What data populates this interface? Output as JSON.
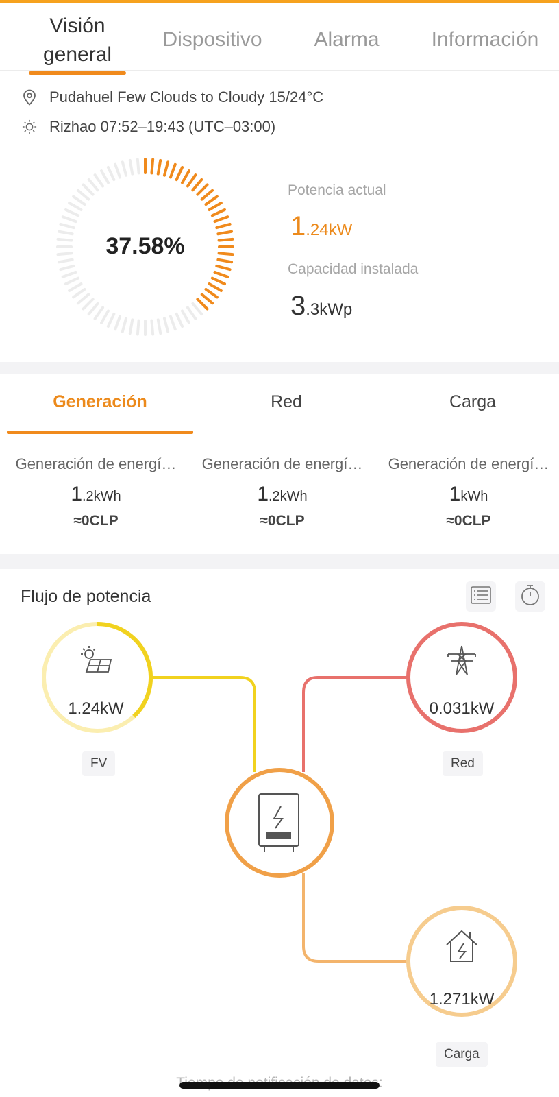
{
  "tabs": [
    {
      "label": "Visión general",
      "active": true
    },
    {
      "label": "Dispositivo",
      "active": false
    },
    {
      "label": "Alarma",
      "active": false
    },
    {
      "label": "Información",
      "active": false
    }
  ],
  "weather": {
    "location_text": "Pudahuel Few Clouds to Cloudy 15/24°C",
    "sun_text": "Rizhao 07:52–19:43 (UTC–03:00)"
  },
  "gauge": {
    "percent_label": "37.58%",
    "fraction": 0.3758,
    "color": "#f08a1c",
    "track_color": "#ececec"
  },
  "current_power": {
    "label": "Potencia actual",
    "value_int": "1",
    "value_rest": ".24kW"
  },
  "installed_capacity": {
    "label": "Capacidad instalada",
    "value_int": "3",
    "value_rest": ".3kWp"
  },
  "sub_tabs": [
    {
      "label": "Generación",
      "active": true
    },
    {
      "label": "Red",
      "active": false
    },
    {
      "label": "Carga",
      "active": false
    }
  ],
  "generation": [
    {
      "label": "Generación de energí…",
      "value_int": "1",
      "value_rest": ".2kWh",
      "money": "≈0CLP"
    },
    {
      "label": "Generación de energí…",
      "value_int": "1",
      "value_rest": ".2kWh",
      "money": "≈0CLP"
    },
    {
      "label": "Generación de energí…",
      "value_int": "1",
      "value_rest": "kWh",
      "money": "≈0CLP"
    }
  ],
  "power_flow": {
    "title": "Flujo de potencia",
    "fv": {
      "value": "1.24kW",
      "tag": "FV",
      "icon": "solar-panel-icon",
      "color": "#f1d21f",
      "ring_fraction": 0.38
    },
    "red": {
      "value": "0.031kW",
      "tag": "Red",
      "icon": "power-tower-icon",
      "color": "#e8716c"
    },
    "carga": {
      "value": "1.271kW",
      "tag": "Carga",
      "icon": "house-icon",
      "color": "#f6cc8e"
    },
    "inverter": {
      "icon": "inverter-icon",
      "color": "#f0a048"
    }
  },
  "notice": "Tiempo de notificación de datos:"
}
